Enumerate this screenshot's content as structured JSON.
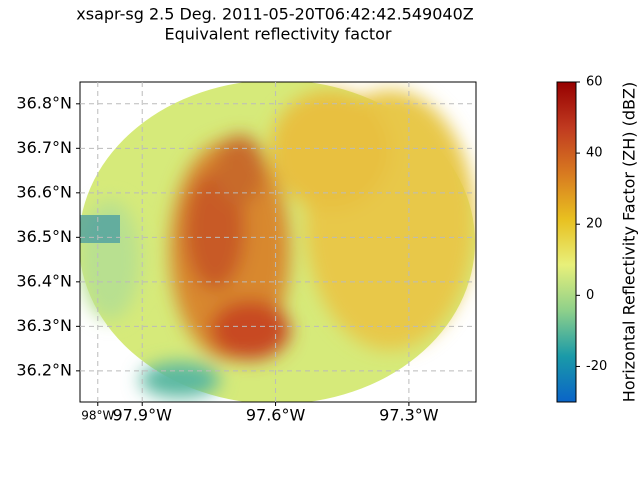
{
  "chart_data": {
    "type": "radar-ppi",
    "title": "xsapr-sg 2.5 Deg. 2011-05-20T06:42:42.549040Z",
    "subtitle": "Equivalent reflectivity factor",
    "xlim": [
      -98.04,
      -97.149
    ],
    "ylim": [
      36.13,
      36.849
    ],
    "xticks": [
      {
        "value": -98.0,
        "label": "98°W"
      },
      {
        "value": -97.9,
        "label": "97.9°W"
      },
      {
        "value": -97.6,
        "label": "97.6°W"
      },
      {
        "value": -97.3,
        "label": "97.3°W"
      }
    ],
    "yticks": [
      {
        "value": 36.2,
        "label": "36.2°N"
      },
      {
        "value": 36.3,
        "label": "36.3°N"
      },
      {
        "value": 36.4,
        "label": "36.4°N"
      },
      {
        "value": 36.5,
        "label": "36.5°N"
      },
      {
        "value": 36.6,
        "label": "36.6°N"
      },
      {
        "value": 36.7,
        "label": "36.7°N"
      },
      {
        "value": 36.8,
        "label": "36.8°N"
      }
    ],
    "grid": true,
    "colorbar": {
      "label": "Horizontal Reflectivity Factor (ZH) (dBZ)",
      "lim": [
        -30,
        60
      ],
      "ticks": [
        -20,
        0,
        20,
        40,
        60
      ],
      "colors": [
        "#0a64c8",
        "#1a9aa8",
        "#8ed08a",
        "#e8f07a",
        "#e8c020",
        "#d87a20",
        "#c03a20",
        "#960000"
      ]
    }
  }
}
